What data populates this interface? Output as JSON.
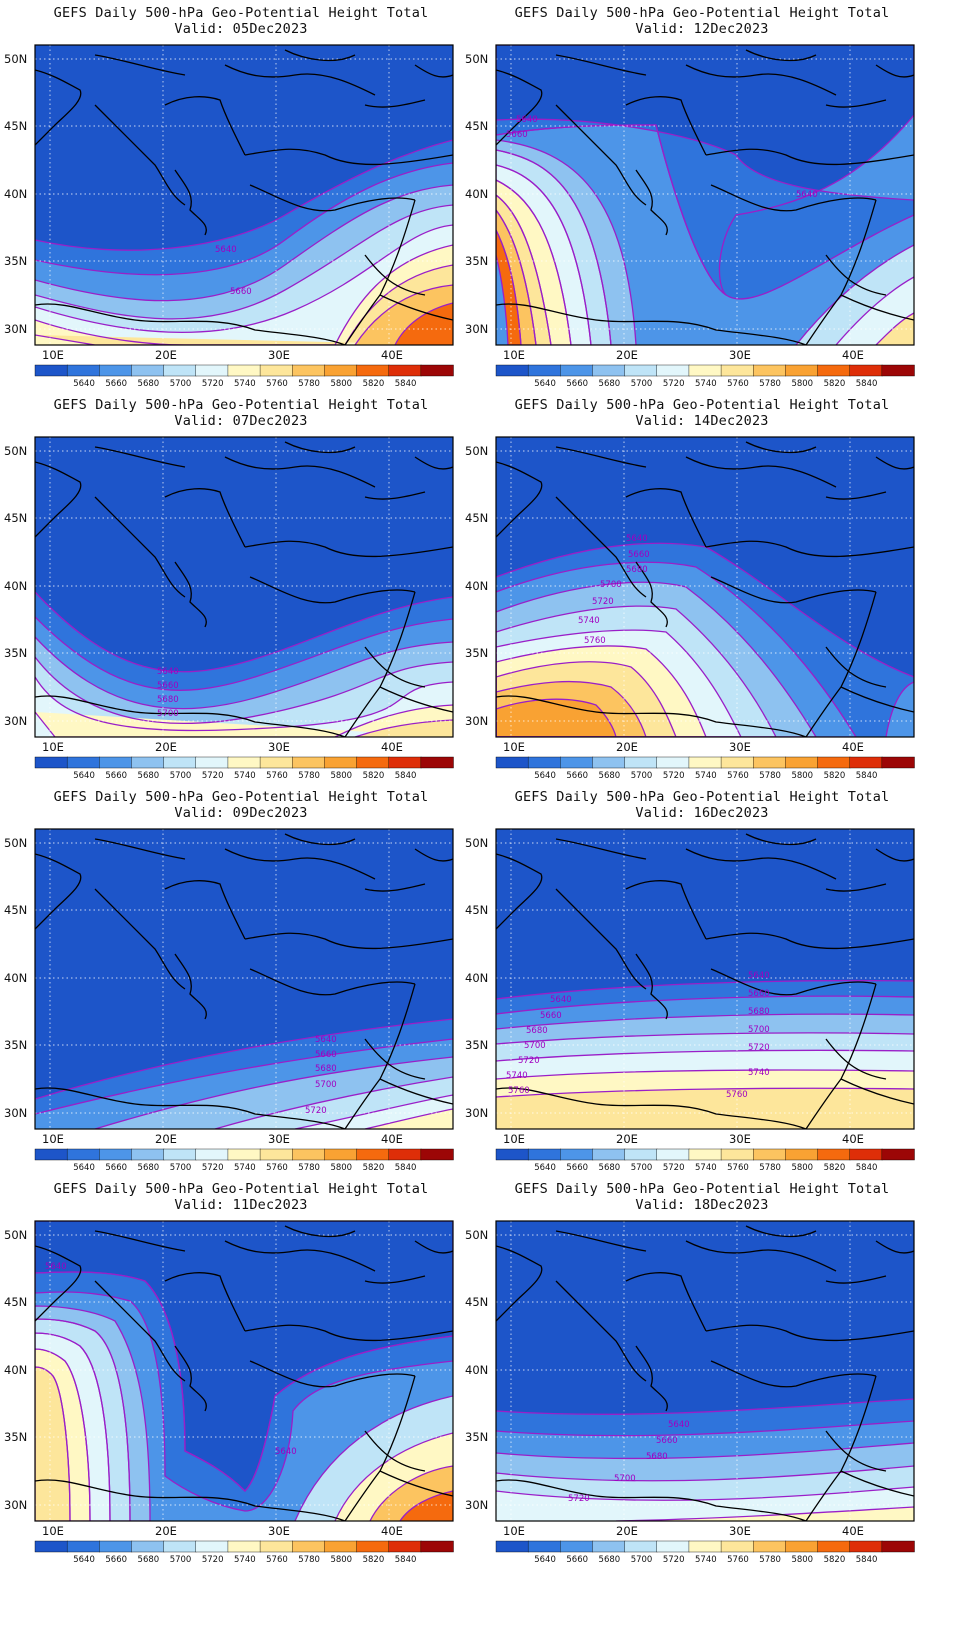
{
  "title_prefix": "GEFS Daily 500-hPa Geo-Potential Height Total",
  "valid_prefix": "Valid:",
  "x_ticks": [
    "10E",
    "20E",
    "30E",
    "40E"
  ],
  "y_ticks": [
    "50N",
    "45N",
    "40N",
    "35N",
    "30N"
  ],
  "colorbar": {
    "levels": [
      "5640",
      "5660",
      "5680",
      "5700",
      "5720",
      "5740",
      "5760",
      "5780",
      "5800",
      "5820",
      "5840"
    ],
    "colors": [
      "#1d55c9",
      "#2f74dc",
      "#4d95e8",
      "#8ec2f0",
      "#bfe4f7",
      "#e2f6fb",
      "#fff8c4",
      "#fde69b",
      "#fcc460",
      "#f9a233",
      "#f56a0e",
      "#de2e08",
      "#9c0606"
    ]
  },
  "map_colors": {
    "land_outline": "#000000",
    "contour": "#9a1fc8",
    "label": "#a000c0",
    "grid": "#ffffff"
  },
  "panels": [
    {
      "title": "GEFS Daily 500-hPa Geo-Potential Height Total",
      "valid": "Valid: 05Dec2023",
      "labels": [
        "5640",
        "5660"
      ]
    },
    {
      "title": "GEFS Daily 500-hPa Geo-Potential Height Total",
      "valid": "Valid: 12Dec2023",
      "labels": [
        "5640",
        "5660",
        "5640"
      ]
    },
    {
      "title": "GEFS Daily 500-hPa Geo-Potential Height Total",
      "valid": "Valid: 07Dec2023",
      "labels": [
        "5640",
        "5660",
        "5680",
        "5700"
      ]
    },
    {
      "title": "GEFS Daily 500-hPa Geo-Potential Height Total",
      "valid": "Valid: 14Dec2023",
      "labels": [
        "5640",
        "5660",
        "5680",
        "5700",
        "5720",
        "5740",
        "5760"
      ]
    },
    {
      "title": "GEFS Daily 500-hPa Geo-Potential Height Total",
      "valid": "Valid: 09Dec2023",
      "labels": [
        "5640",
        "5660",
        "5680",
        "5700",
        "5720"
      ]
    },
    {
      "title": "GEFS Daily 500-hPa Geo-Potential Height Total",
      "valid": "Valid: 16Dec2023",
      "labels": [
        "5640",
        "5660",
        "5680",
        "5700",
        "5720",
        "5740",
        "5760",
        "5640",
        "5660",
        "5680",
        "5700",
        "5720",
        "5740",
        "5760"
      ]
    },
    {
      "title": "GEFS Daily 500-hPa Geo-Potential Height Total",
      "valid": "Valid: 11Dec2023",
      "labels": [
        "5640",
        "5640"
      ]
    },
    {
      "title": "GEFS Daily 500-hPa Geo-Potential Height Total",
      "valid": "Valid: 18Dec2023",
      "labels": [
        "5640",
        "5660",
        "5680",
        "5700",
        "5720"
      ]
    }
  ]
}
